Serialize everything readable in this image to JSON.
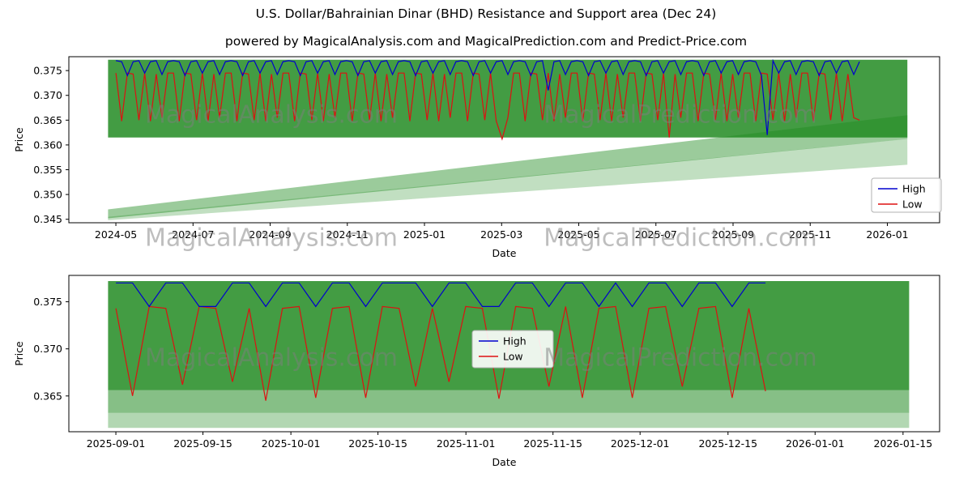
{
  "page": {
    "title": "U.S. Dollar/Bahrainian Dinar (BHD) Resistance and Support area (Dec 24)",
    "subtitle": "powered by MagicalAnalysis.com and MagicalPrediction.com and Predict-Price.com"
  },
  "watermarks": {
    "left": "MagicalAnalysis.com",
    "right": "MagicalPrediction.com"
  },
  "colors": {
    "high_line": "#0000cd",
    "low_line": "#dd1111",
    "band_green": "#228b22"
  },
  "chart_data": [
    {
      "type": "line",
      "name": "full-history",
      "xlabel": "Date",
      "ylabel": "Price",
      "ylim": [
        0.3443,
        0.3778
      ],
      "grid": false,
      "legend_position": "lower right",
      "yticks": [
        {
          "v": 0.345,
          "label": "0.345"
        },
        {
          "v": 0.35,
          "label": "0.350"
        },
        {
          "v": 0.355,
          "label": "0.355"
        },
        {
          "v": 0.36,
          "label": "0.360"
        },
        {
          "v": 0.365,
          "label": "0.365"
        },
        {
          "v": 0.37,
          "label": "0.370"
        },
        {
          "v": 0.375,
          "label": "0.375"
        }
      ],
      "xticks": [
        {
          "t": 0.054,
          "label": "2024-05"
        },
        {
          "t": 0.1426,
          "label": "2024-07"
        },
        {
          "t": 0.2312,
          "label": "2024-09"
        },
        {
          "t": 0.3198,
          "label": "2024-11"
        },
        {
          "t": 0.4084,
          "label": "2025-01"
        },
        {
          "t": 0.497,
          "label": "2025-03"
        },
        {
          "t": 0.5856,
          "label": "2025-05"
        },
        {
          "t": 0.6742,
          "label": "2025-07"
        },
        {
          "t": 0.7628,
          "label": "2025-09"
        },
        {
          "t": 0.8514,
          "label": "2025-11"
        },
        {
          "t": 0.94,
          "label": "2026-01"
        }
      ],
      "bands": [
        {
          "color": "#228b22",
          "alpha": 0.85,
          "pts": [
            [
              0.045,
              0.3615
            ],
            [
              0.963,
              0.3615
            ],
            [
              0.963,
              0.3772
            ],
            [
              0.045,
              0.3772
            ]
          ]
        },
        {
          "color": "#228b22",
          "alpha": 0.45,
          "pts": [
            [
              0.045,
              0.3452
            ],
            [
              0.963,
              0.3612
            ],
            [
              0.963,
              0.366
            ],
            [
              0.045,
              0.347
            ]
          ]
        },
        {
          "color": "#228b22",
          "alpha": 0.28,
          "pts": [
            [
              0.045,
              0.3448
            ],
            [
              0.963,
              0.356
            ],
            [
              0.963,
              0.3612
            ],
            [
              0.045,
              0.3455
            ]
          ]
        }
      ],
      "series": [
        {
          "name": "High",
          "color": "#0000cd",
          "t0": 0.054,
          "dt": 0.00662,
          "values": [
            0.377,
            0.3768,
            0.374,
            0.3768,
            0.377,
            0.3745,
            0.3768,
            0.377,
            0.3742,
            0.3768,
            0.377,
            0.3768,
            0.374,
            0.3768,
            0.377,
            0.3745,
            0.3768,
            0.377,
            0.3742,
            0.3768,
            0.377,
            0.3768,
            0.374,
            0.3768,
            0.377,
            0.3745,
            0.3768,
            0.377,
            0.3742,
            0.3768,
            0.377,
            0.3768,
            0.374,
            0.3768,
            0.377,
            0.3745,
            0.3768,
            0.377,
            0.3742,
            0.3768,
            0.377,
            0.3768,
            0.374,
            0.3768,
            0.377,
            0.3745,
            0.3768,
            0.377,
            0.3742,
            0.3768,
            0.377,
            0.3768,
            0.374,
            0.3768,
            0.377,
            0.3745,
            0.3768,
            0.377,
            0.3742,
            0.3768,
            0.377,
            0.3768,
            0.374,
            0.3768,
            0.377,
            0.3745,
            0.3768,
            0.377,
            0.3742,
            0.3768,
            0.377,
            0.3768,
            0.374,
            0.3768,
            0.377,
            0.371,
            0.3768,
            0.377,
            0.3742,
            0.3768,
            0.377,
            0.3768,
            0.374,
            0.3768,
            0.377,
            0.3745,
            0.3768,
            0.377,
            0.3742,
            0.3768,
            0.377,
            0.3768,
            0.374,
            0.3768,
            0.377,
            0.3745,
            0.3768,
            0.377,
            0.3742,
            0.3768,
            0.377,
            0.3768,
            0.374,
            0.3768,
            0.377,
            0.3745,
            0.3768,
            0.377,
            0.3742,
            0.3768,
            0.377,
            0.3768,
            0.374,
            0.362,
            0.377,
            0.3745,
            0.3768,
            0.377,
            0.3742,
            0.3768,
            0.377,
            0.3768,
            0.374,
            0.3768,
            0.377,
            0.3745,
            0.3768,
            0.377,
            0.3742,
            0.3768
          ]
        },
        {
          "name": "Low",
          "color": "#dd1111",
          "t0": 0.054,
          "dt": 0.00662,
          "values": [
            0.3745,
            0.3648,
            0.3745,
            0.3743,
            0.365,
            0.3745,
            0.3648,
            0.3743,
            0.3655,
            0.3745,
            0.3745,
            0.3648,
            0.3745,
            0.3743,
            0.365,
            0.3745,
            0.3648,
            0.3743,
            0.3655,
            0.3745,
            0.3745,
            0.3648,
            0.3745,
            0.3743,
            0.365,
            0.3745,
            0.3648,
            0.3743,
            0.3655,
            0.3745,
            0.3745,
            0.3648,
            0.3745,
            0.3743,
            0.365,
            0.3745,
            0.3648,
            0.3743,
            0.3655,
            0.3745,
            0.3745,
            0.3648,
            0.3745,
            0.3743,
            0.365,
            0.3745,
            0.3648,
            0.3743,
            0.3655,
            0.3745,
            0.3745,
            0.3648,
            0.3745,
            0.3743,
            0.365,
            0.3745,
            0.3648,
            0.3743,
            0.3655,
            0.3745,
            0.3745,
            0.3648,
            0.3745,
            0.3743,
            0.365,
            0.3745,
            0.3648,
            0.3612,
            0.3655,
            0.3745,
            0.3745,
            0.3648,
            0.3745,
            0.3743,
            0.365,
            0.3745,
            0.3648,
            0.3743,
            0.3655,
            0.3745,
            0.3745,
            0.3648,
            0.3745,
            0.3743,
            0.365,
            0.3745,
            0.3648,
            0.3743,
            0.3655,
            0.3745,
            0.3745,
            0.3648,
            0.3745,
            0.3743,
            0.365,
            0.3745,
            0.3615,
            0.3743,
            0.3655,
            0.3745,
            0.3745,
            0.3648,
            0.3745,
            0.3743,
            0.365,
            0.3745,
            0.3648,
            0.3743,
            0.3655,
            0.3745,
            0.3745,
            0.3648,
            0.3745,
            0.3743,
            0.365,
            0.3745,
            0.3648,
            0.3743,
            0.3655,
            0.3745,
            0.3745,
            0.3648,
            0.3745,
            0.3743,
            0.365,
            0.3745,
            0.3648,
            0.3743,
            0.3655,
            0.365
          ]
        }
      ]
    },
    {
      "type": "line",
      "name": "recent-zoom",
      "xlabel": "Date",
      "ylabel": "Price",
      "ylim": [
        0.3612,
        0.3778
      ],
      "grid": false,
      "legend_position": "center",
      "yticks": [
        {
          "v": 0.365,
          "label": "0.365"
        },
        {
          "v": 0.37,
          "label": "0.370"
        },
        {
          "v": 0.375,
          "label": "0.375"
        }
      ],
      "xticks": [
        {
          "t": 0.054,
          "label": "2025-09-01"
        },
        {
          "t": 0.154,
          "label": "2025-09-15"
        },
        {
          "t": 0.255,
          "label": "2025-10-01"
        },
        {
          "t": 0.355,
          "label": "2025-10-15"
        },
        {
          "t": 0.456,
          "label": "2025-11-01"
        },
        {
          "t": 0.556,
          "label": "2025-11-15"
        },
        {
          "t": 0.656,
          "label": "2025-12-01"
        },
        {
          "t": 0.757,
          "label": "2025-12-15"
        },
        {
          "t": 0.857,
          "label": "2026-01-01"
        },
        {
          "t": 0.958,
          "label": "2026-01-15"
        }
      ],
      "bands": [
        {
          "color": "#228b22",
          "alpha": 0.85,
          "pts": [
            [
              0.045,
              0.3656
            ],
            [
              0.965,
              0.3656
            ],
            [
              0.965,
              0.3772
            ],
            [
              0.045,
              0.3772
            ]
          ]
        },
        {
          "color": "#228b22",
          "alpha": 0.55,
          "pts": [
            [
              0.045,
              0.3632
            ],
            [
              0.965,
              0.3632
            ],
            [
              0.965,
              0.3656
            ],
            [
              0.045,
              0.3656
            ]
          ]
        },
        {
          "color": "#228b22",
          "alpha": 0.35,
          "pts": [
            [
              0.045,
              0.3616
            ],
            [
              0.965,
              0.3616
            ],
            [
              0.965,
              0.3632
            ],
            [
              0.045,
              0.3632
            ]
          ]
        }
      ],
      "series": [
        {
          "name": "High",
          "color": "#0000cd",
          "t0": 0.054,
          "dt": 0.01913,
          "values": [
            0.377,
            0.377,
            0.3745,
            0.377,
            0.377,
            0.3745,
            0.3745,
            0.377,
            0.377,
            0.3745,
            0.377,
            0.377,
            0.3745,
            0.377,
            0.377,
            0.3745,
            0.377,
            0.377,
            0.377,
            0.3745,
            0.377,
            0.377,
            0.3745,
            0.3745,
            0.377,
            0.377,
            0.3745,
            0.377,
            0.377,
            0.3745,
            0.377,
            0.3745,
            0.377,
            0.377,
            0.3745,
            0.377,
            0.377,
            0.3745,
            0.377,
            0.377
          ]
        },
        {
          "name": "Low",
          "color": "#dd1111",
          "t0": 0.054,
          "dt": 0.01913,
          "values": [
            0.3743,
            0.365,
            0.3745,
            0.3743,
            0.3662,
            0.3745,
            0.3743,
            0.3665,
            0.3743,
            0.3645,
            0.3743,
            0.3745,
            0.3648,
            0.3743,
            0.3745,
            0.3648,
            0.3745,
            0.3743,
            0.366,
            0.3743,
            0.3665,
            0.3745,
            0.3743,
            0.3647,
            0.3745,
            0.3743,
            0.366,
            0.3745,
            0.3648,
            0.3743,
            0.3745,
            0.3648,
            0.3743,
            0.3745,
            0.366,
            0.3743,
            0.3745,
            0.3648,
            0.3743,
            0.3655
          ]
        }
      ]
    }
  ]
}
